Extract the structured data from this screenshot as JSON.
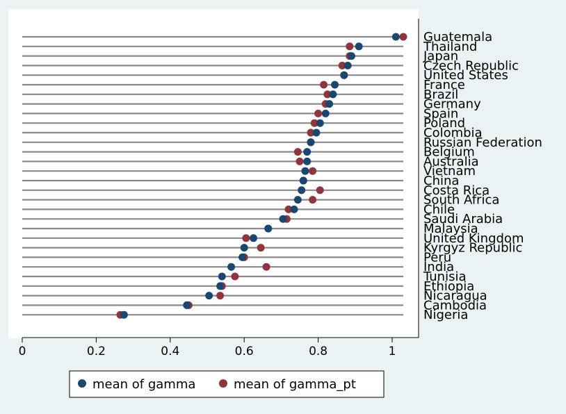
{
  "chart_data": {
    "type": "dot",
    "orientation": "horizontal",
    "categories": [
      "Guatemala",
      "Thailand",
      "Japan",
      "Czech Republic",
      "United States",
      "France",
      "Brazil",
      "Germany",
      "Spain",
      "Poland",
      "Colombia",
      "Russian Federation",
      "Belgium",
      "Australia",
      "Vietnam",
      "China",
      "Costa Rica",
      "South Africa",
      "Chile",
      "Saudi Arabia",
      "Malaysia",
      "United Kingdom",
      "Kyrgyz Republic",
      "Peru",
      "India",
      "Tunisia",
      "Ethiopia",
      "Nicaragua",
      "Cambodia",
      "Nigeria"
    ],
    "series": [
      {
        "name": "mean of gamma",
        "color": "#1a476f",
        "values": [
          1.01,
          0.91,
          0.89,
          0.88,
          0.87,
          0.845,
          0.84,
          0.83,
          0.82,
          0.805,
          0.795,
          0.78,
          0.77,
          0.77,
          0.765,
          0.76,
          0.755,
          0.745,
          0.735,
          0.705,
          0.665,
          0.625,
          0.6,
          0.595,
          0.565,
          0.54,
          0.535,
          0.505,
          0.445,
          0.275
        ]
      },
      {
        "name": "mean of gamma_pt",
        "color": "#90353b",
        "values": [
          1.03,
          0.885,
          0.885,
          0.865,
          0.87,
          0.815,
          0.825,
          0.82,
          0.8,
          0.79,
          0.78,
          0.78,
          0.745,
          0.75,
          0.785,
          0.76,
          0.805,
          0.785,
          0.72,
          0.715,
          0.665,
          0.605,
          0.645,
          0.6,
          0.66,
          0.575,
          0.54,
          0.535,
          0.45,
          0.265
        ]
      }
    ],
    "x_ticks": [
      "0",
      "0.2",
      "0.4",
      "0.6",
      "0.8",
      "1"
    ],
    "xlim": [
      0,
      1.07
    ],
    "grid": true,
    "legend_position": "bottom"
  }
}
